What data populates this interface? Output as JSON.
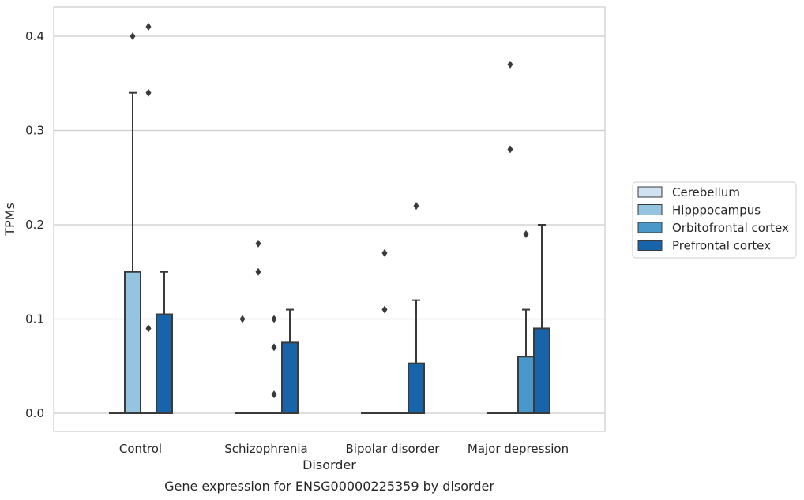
{
  "chart_data": {
    "type": "box",
    "title": "",
    "caption": "Gene expression for ENSG00000225359 by disorder",
    "xlabel": "Disorder",
    "ylabel": "TPMs",
    "ylim": [
      -0.02,
      0.43
    ],
    "yticks": [
      "0.0",
      "0.1",
      "0.2",
      "0.3",
      "0.4"
    ],
    "ytick_values": [
      0,
      0.1,
      0.2,
      0.3,
      0.4
    ],
    "grid": true,
    "legend_position": "right",
    "categories": [
      "Control",
      "Schizophrenia",
      "Bipolar disorder",
      "Major depression"
    ],
    "series": [
      {
        "name": "Cerebellum",
        "color": "#d0e1f2",
        "boxes": [
          {
            "q1": 0,
            "median": 0,
            "q3": 0,
            "whisker_low": 0,
            "whisker_high": 0,
            "outliers": []
          },
          {
            "q1": 0,
            "median": 0,
            "q3": 0,
            "whisker_low": 0,
            "whisker_high": 0,
            "outliers": [
              0.1
            ]
          },
          {
            "q1": 0,
            "median": 0,
            "q3": 0,
            "whisker_low": 0,
            "whisker_high": 0,
            "outliers": []
          },
          {
            "q1": 0,
            "median": 0,
            "q3": 0,
            "whisker_low": 0,
            "whisker_high": 0,
            "outliers": []
          }
        ]
      },
      {
        "name": "Hipppocampus",
        "color": "#94c4df",
        "boxes": [
          {
            "q1": 0,
            "median": 0,
            "q3": 0.15,
            "whisker_low": 0,
            "whisker_high": 0.34,
            "outliers": [
              0.4
            ]
          },
          {
            "q1": 0,
            "median": 0,
            "q3": 0,
            "whisker_low": 0,
            "whisker_high": 0,
            "outliers": [
              0.18,
              0.15
            ]
          },
          {
            "q1": 0,
            "median": 0,
            "q3": 0,
            "whisker_low": 0,
            "whisker_high": 0,
            "outliers": [
              0.17,
              0.11
            ]
          },
          {
            "q1": 0,
            "median": 0,
            "q3": 0,
            "whisker_low": 0,
            "whisker_high": 0,
            "outliers": [
              0.37,
              0.28
            ]
          }
        ]
      },
      {
        "name": "Orbitofrontal cortex",
        "color": "#4a98c9",
        "boxes": [
          {
            "q1": 0,
            "median": 0,
            "q3": 0,
            "whisker_low": 0,
            "whisker_high": 0,
            "outliers": [
              0.41,
              0.34,
              0.09
            ]
          },
          {
            "q1": 0,
            "median": 0,
            "q3": 0,
            "whisker_low": 0,
            "whisker_high": 0,
            "outliers": [
              0.1,
              0.07,
              0.02
            ]
          },
          {
            "q1": 0,
            "median": 0,
            "q3": 0,
            "whisker_low": 0,
            "whisker_high": 0,
            "outliers": []
          },
          {
            "q1": 0,
            "median": 0,
            "q3": 0.06,
            "whisker_low": 0,
            "whisker_high": 0.11,
            "outliers": [
              0.19
            ]
          }
        ]
      },
      {
        "name": "Prefrontal cortex",
        "color": "#1764ab",
        "boxes": [
          {
            "q1": 0,
            "median": 0,
            "q3": 0.105,
            "whisker_low": 0,
            "whisker_high": 0.15,
            "outliers": []
          },
          {
            "q1": 0,
            "median": 0,
            "q3": 0.075,
            "whisker_low": 0,
            "whisker_high": 0.11,
            "outliers": []
          },
          {
            "q1": 0,
            "median": 0,
            "q3": 0.053,
            "whisker_low": 0,
            "whisker_high": 0.12,
            "outliers": [
              0.22
            ]
          },
          {
            "q1": 0,
            "median": 0,
            "q3": 0.09,
            "whisker_low": 0,
            "whisker_high": 0.2,
            "outliers": []
          }
        ]
      }
    ]
  }
}
